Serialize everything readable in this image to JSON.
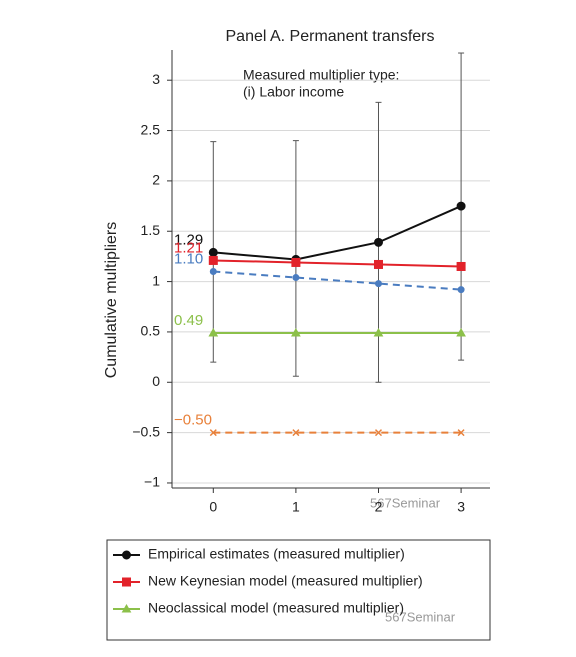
{
  "chart_data": {
    "type": "line",
    "title": "Panel A. Permanent transfers",
    "y_label": "Cumulative multipliers",
    "annotations": [
      "Measured multiplier type:",
      "(i) Labor income"
    ],
    "watermark": "567Seminar",
    "x": [
      0,
      1,
      2,
      3
    ],
    "xlim": [
      -0.5,
      3.35
    ],
    "xticks": [
      0,
      1,
      2,
      3
    ],
    "ylim": [
      -1.05,
      3.3
    ],
    "yticks": [
      {
        "value": -1,
        "label": "−1"
      },
      {
        "value": -0.5,
        "label": "−0.5"
      },
      0,
      0.5,
      1,
      1.5,
      2,
      2.5,
      3
    ],
    "grid": true,
    "series": [
      {
        "name": "Empirical estimates (measured multiplier)",
        "color": "#111111",
        "marker": "circle",
        "dash": false,
        "values": [
          1.29,
          1.22,
          1.39,
          1.75
        ],
        "value_labels": [
          "1.29",
          null,
          null,
          null
        ],
        "lower": [
          0.2,
          0.06,
          0.0,
          0.22
        ],
        "upper": [
          2.39,
          2.4,
          2.78,
          3.27
        ]
      },
      {
        "name": "New Keynesian model (measured multiplier)",
        "color": "#e2222a",
        "marker": "square",
        "dash": false,
        "values": [
          1.21,
          1.19,
          1.17,
          1.15
        ],
        "value_labels": [
          "1.21",
          null,
          null,
          null
        ]
      },
      {
        "color": "#4a7cc0",
        "marker": "diamond",
        "dash": true,
        "values": [
          1.1,
          1.04,
          0.98,
          0.92
        ],
        "value_labels": [
          "1.10",
          null,
          null,
          null
        ]
      },
      {
        "name": "Neoclassical model (measured multiplier)",
        "color": "#8cc04a",
        "marker": "triangle",
        "dash": false,
        "values": [
          0.49,
          0.49,
          0.49,
          0.49
        ],
        "value_labels": [
          "0.49",
          null,
          null,
          null
        ]
      },
      {
        "color": "#e8803a",
        "marker": "x",
        "dash": true,
        "values": [
          -0.5,
          -0.5,
          -0.5,
          -0.5
        ],
        "value_labels": [
          "−0.50",
          null,
          null,
          null
        ]
      }
    ]
  }
}
